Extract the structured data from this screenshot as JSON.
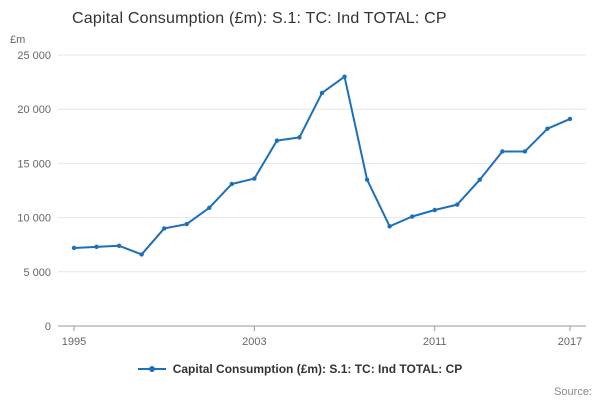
{
  "title": "Capital Consumption (£m): S.1: TC: Ind TOTAL: CP",
  "y_axis_unit": "£m",
  "source_label": "Source:",
  "legend": {
    "label": "Capital Consumption (£m): S.1: TC: Ind TOTAL: CP"
  },
  "colors": {
    "line": "#1d70b8",
    "grid": "#e6e6e6",
    "axis": "#999999",
    "tick_text": "#666666",
    "title_text": "#333333"
  },
  "chart_data": {
    "type": "line",
    "title": "Capital Consumption (£m): S.1: TC: Ind TOTAL: CP",
    "xlabel": "",
    "ylabel": "£m",
    "ylim": [
      0,
      25000
    ],
    "grid": true,
    "legend_position": "bottom",
    "x": [
      1995,
      1996,
      1997,
      1998,
      1999,
      2000,
      2001,
      2002,
      2003,
      2004,
      2005,
      2006,
      2007,
      2008,
      2009,
      2010,
      2011,
      2012,
      2013,
      2014,
      2015,
      2016,
      2017
    ],
    "series": [
      {
        "name": "Capital Consumption (£m): S.1: TC: Ind TOTAL: CP",
        "values": [
          7200,
          7300,
          7400,
          6600,
          9000,
          9400,
          10900,
          13100,
          13600,
          17100,
          17400,
          21500,
          23000,
          13500,
          9200,
          10100,
          10700,
          11200,
          13500,
          16100,
          16100,
          18200,
          19100
        ]
      }
    ],
    "y_ticks": [
      "0",
      "5 000",
      "10 000",
      "15 000",
      "20 000",
      "25 000"
    ],
    "x_tick_years": [
      1995,
      2003,
      2011,
      2017
    ]
  }
}
